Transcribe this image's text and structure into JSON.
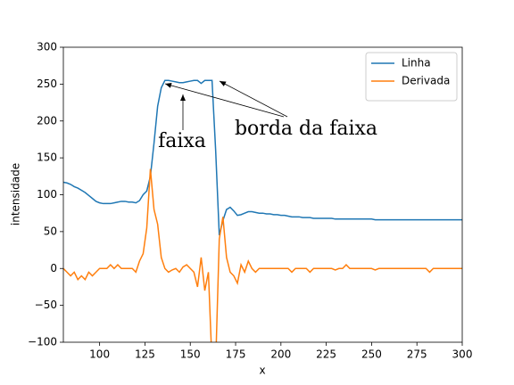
{
  "chart_data": {
    "type": "line",
    "xlabel": "x",
    "ylabel": "intensidade",
    "xlim": [
      80,
      300
    ],
    "ylim": [
      -100,
      300
    ],
    "xticks": [
      100,
      125,
      150,
      175,
      200,
      225,
      250,
      275,
      300
    ],
    "yticks": [
      {
        "value": -100,
        "label": "−100"
      },
      {
        "value": -50,
        "label": "−50"
      },
      0,
      50,
      100,
      150,
      200,
      250,
      300
    ],
    "legend": "upper right",
    "grid": false,
    "annotations": [
      "faixa",
      "borda da faixa"
    ],
    "x": [
      80,
      82,
      84,
      86,
      88,
      90,
      92,
      94,
      96,
      98,
      100,
      102,
      104,
      106,
      108,
      110,
      112,
      114,
      116,
      118,
      120,
      122,
      124,
      126,
      128,
      130,
      132,
      134,
      136,
      138,
      140,
      142,
      144,
      146,
      148,
      150,
      152,
      154,
      156,
      158,
      160,
      162,
      164,
      166,
      168,
      170,
      172,
      174,
      176,
      178,
      180,
      182,
      184,
      186,
      188,
      190,
      192,
      194,
      196,
      198,
      200,
      202,
      204,
      206,
      208,
      210,
      212,
      214,
      216,
      218,
      220,
      222,
      224,
      226,
      228,
      230,
      232,
      234,
      236,
      238,
      240,
      242,
      244,
      246,
      248,
      250,
      252,
      254,
      256,
      258,
      260,
      262,
      264,
      266,
      268,
      270,
      272,
      274,
      276,
      278,
      280,
      282,
      284,
      286,
      288,
      290,
      292,
      294,
      296,
      298,
      300
    ],
    "series": [
      {
        "name": "Linha",
        "color": "#1f77b4",
        "values": [
          117,
          116,
          114,
          111,
          109,
          106,
          103,
          99,
          95,
          91,
          89,
          88,
          88,
          88,
          89,
          90,
          91,
          91,
          90,
          90,
          89,
          92,
          100,
          105,
          125,
          170,
          220,
          245,
          255,
          255,
          254,
          253,
          252,
          252,
          253,
          254,
          255,
          255,
          251,
          255,
          255,
          255,
          160,
          45,
          65,
          80,
          83,
          78,
          72,
          73,
          75,
          77,
          77,
          76,
          75,
          75,
          74,
          74,
          73,
          73,
          72,
          72,
          71,
          70,
          70,
          70,
          69,
          69,
          69,
          68,
          68,
          68,
          68,
          68,
          68,
          67,
          67,
          67,
          67,
          67,
          67,
          67,
          67,
          67,
          67,
          67,
          66,
          66,
          66,
          66,
          66,
          66,
          66,
          66,
          66,
          66,
          66,
          66,
          66,
          66,
          66,
          66,
          66,
          66,
          66,
          66,
          66,
          66,
          66,
          66,
          66
        ]
      },
      {
        "name": "Derivada",
        "color": "#ff7f0e",
        "values": [
          0,
          -5,
          -10,
          -5,
          -15,
          -10,
          -15,
          -5,
          -10,
          -5,
          0,
          0,
          0,
          5,
          0,
          5,
          0,
          0,
          0,
          0,
          -5,
          10,
          20,
          55,
          135,
          80,
          60,
          15,
          0,
          -5,
          -2,
          0,
          -5,
          2,
          5,
          0,
          -5,
          -25,
          15,
          -30,
          -5,
          -130,
          -130,
          40,
          70,
          15,
          -5,
          -10,
          -20,
          5,
          -5,
          10,
          0,
          -5,
          0,
          0,
          0,
          0,
          0,
          0,
          0,
          0,
          0,
          -5,
          0,
          0,
          0,
          0,
          -5,
          0,
          0,
          0,
          0,
          0,
          0,
          -2,
          0,
          0,
          5,
          0,
          0,
          0,
          0,
          0,
          0,
          0,
          -2,
          0,
          0,
          0,
          0,
          0,
          0,
          0,
          0,
          0,
          0,
          0,
          0,
          0,
          0,
          -5,
          0,
          0,
          0,
          0,
          0,
          0,
          0,
          0,
          0
        ]
      }
    ]
  }
}
